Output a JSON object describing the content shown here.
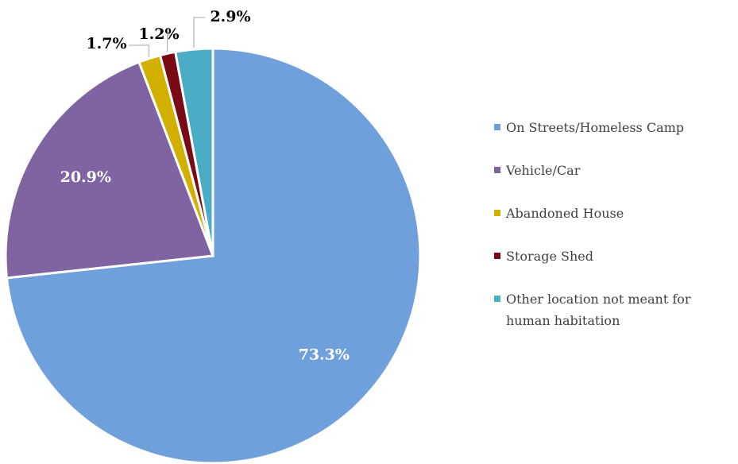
{
  "chart_data": {
    "type": "pie",
    "categories": [
      "On Streets/Homeless Camp",
      "Vehicle/Car",
      "Abandoned House",
      "Storage Shed",
      "Other location not meant for human habitation"
    ],
    "values": [
      73.3,
      20.9,
      1.7,
      1.2,
      2.9
    ],
    "value_labels": [
      "73.3%",
      "20.9%",
      "1.7%",
      "1.2%",
      "2.9%"
    ],
    "colors": [
      "#6fa0dc",
      "#8064a2",
      "#d2b000",
      "#7a0b16",
      "#4bacc6"
    ],
    "legend": "right"
  }
}
